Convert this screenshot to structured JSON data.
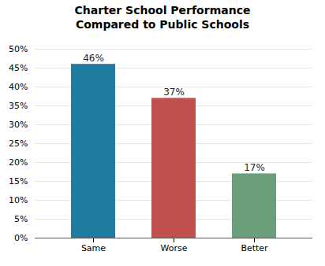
{
  "chart_data": {
    "type": "bar",
    "title": "Charter School Performance\nCompared to Public Schools",
    "categories": [
      "Same",
      "Worse",
      "Better"
    ],
    "values": [
      46,
      37,
      17
    ],
    "value_labels": [
      "46%",
      "37%",
      "17%"
    ],
    "data_labels": true,
    "colors": [
      "#1f7ca0",
      "#c0504d",
      "#6b9e7a"
    ],
    "ylim": [
      0,
      50
    ],
    "yticks": [
      {
        "value": 0,
        "label": "0%"
      },
      {
        "value": 5,
        "label": "5%"
      },
      {
        "value": 10,
        "label": "10%"
      },
      {
        "value": 15,
        "label": "15%"
      },
      {
        "value": 20,
        "label": "20%"
      },
      {
        "value": 25,
        "label": "25%"
      },
      {
        "value": 30,
        "label": "30%"
      },
      {
        "value": 35,
        "label": "35%"
      },
      {
        "value": 40,
        "label": "40%"
      },
      {
        "value": 45,
        "label": "45%"
      },
      {
        "value": 50,
        "label": "50%"
      }
    ],
    "grid": true
  }
}
